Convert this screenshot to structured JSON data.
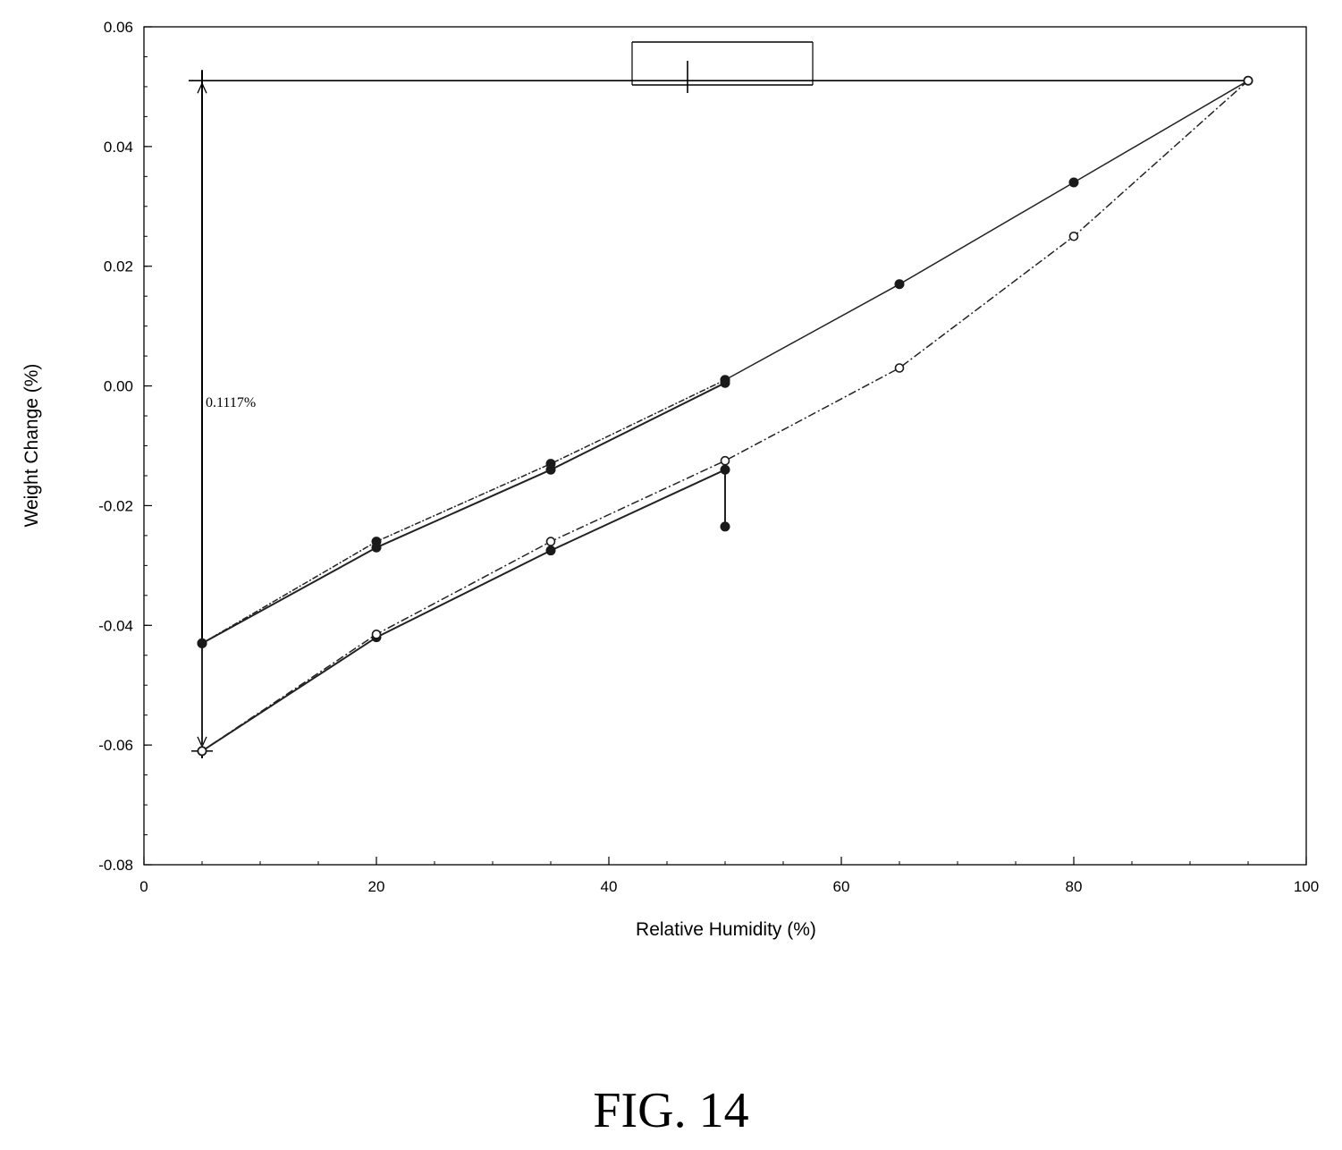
{
  "chart_data": {
    "type": "line",
    "title": "",
    "xlabel": "Relative Humidity (%)",
    "ylabel": "Weight Change (%)",
    "xlim": [
      0,
      100
    ],
    "ylim": [
      -0.08,
      0.06
    ],
    "x_ticks": [
      0,
      20,
      40,
      60,
      80,
      100
    ],
    "y_ticks": [
      -0.08,
      -0.06,
      -0.04,
      -0.02,
      0.0,
      0.02,
      0.04,
      0.06
    ],
    "x_tick_labels": [
      "0",
      "20",
      "40",
      "60",
      "80",
      "100"
    ],
    "y_tick_labels": [
      "-0.08",
      "-0.06",
      "-0.04",
      "-0.02",
      "0.00",
      "0.02",
      "0.04",
      "0.06"
    ],
    "grid": false,
    "series": [
      {
        "x": [
          50,
          50,
          35,
          20,
          5,
          5,
          20,
          35,
          50
        ],
        "y": [
          -0.0235,
          -0.014,
          -0.0275,
          -0.042,
          -0.061,
          -0.043,
          -0.027,
          -0.014,
          0.0005
        ]
      },
      {
        "x": [
          50,
          65,
          80,
          95
        ],
        "y": [
          0.001,
          0.017,
          0.034,
          0.051
        ]
      },
      {
        "x": [
          95,
          80,
          65,
          50,
          35,
          20,
          5
        ],
        "y": [
          0.051,
          0.025,
          0.003,
          -0.0125,
          -0.026,
          -0.0415,
          -0.061
        ]
      },
      {
        "x": [
          5,
          20,
          35,
          50
        ],
        "y": [
          -0.043,
          -0.026,
          -0.013,
          0.001
        ]
      }
    ],
    "annotations": [
      {
        "text": "0.1117%",
        "x": 5,
        "y": -0.0035
      }
    ]
  },
  "caption": "FIG. 14",
  "colors": {
    "ink": "#000000",
    "line": "#222222",
    "marker": "#1a1a1a"
  }
}
